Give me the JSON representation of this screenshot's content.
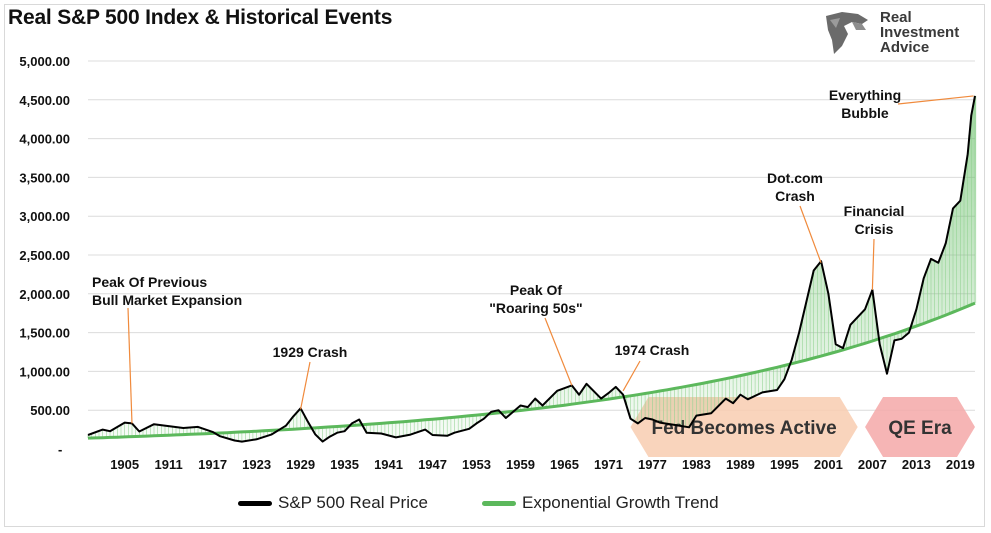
{
  "chart_data": {
    "type": "line",
    "title": "Real S&P 500 Index & Historical Events",
    "xlabel": "",
    "ylabel": "",
    "xlim": [
      1900,
      2021
    ],
    "ylim": [
      0,
      5000
    ],
    "y_ticks": [
      "-",
      "500.00",
      "1,000.00",
      "1,500.00",
      "2,000.00",
      "2,500.00",
      "3,000.00",
      "3,500.00",
      "4,000.00",
      "4,500.00",
      "5,000.00"
    ],
    "x_ticks": [
      "1905",
      "1911",
      "1917",
      "1923",
      "1929",
      "1935",
      "1941",
      "1947",
      "1953",
      "1959",
      "1965",
      "1971",
      "1977",
      "1983",
      "1989",
      "1995",
      "2001",
      "2007",
      "2013",
      "2019"
    ],
    "grid": true,
    "legend_position": "bottom",
    "series": [
      {
        "name": "S&P 500 Real Price",
        "color": "#000000",
        "points": [
          [
            1900,
            180
          ],
          [
            1902,
            250
          ],
          [
            1903,
            230
          ],
          [
            1905,
            340
          ],
          [
            1906,
            330
          ],
          [
            1907,
            225
          ],
          [
            1909,
            320
          ],
          [
            1911,
            295
          ],
          [
            1913,
            270
          ],
          [
            1915,
            285
          ],
          [
            1917,
            220
          ],
          [
            1918,
            165
          ],
          [
            1920,
            110
          ],
          [
            1921,
            95
          ],
          [
            1923,
            125
          ],
          [
            1925,
            185
          ],
          [
            1927,
            300
          ],
          [
            1928,
            420
          ],
          [
            1929,
            525
          ],
          [
            1930,
            350
          ],
          [
            1931,
            190
          ],
          [
            1932,
            95
          ],
          [
            1933,
            160
          ],
          [
            1934,
            210
          ],
          [
            1935,
            230
          ],
          [
            1936,
            330
          ],
          [
            1937,
            380
          ],
          [
            1938,
            210
          ],
          [
            1940,
            200
          ],
          [
            1942,
            150
          ],
          [
            1944,
            185
          ],
          [
            1946,
            250
          ],
          [
            1947,
            180
          ],
          [
            1949,
            170
          ],
          [
            1950,
            210
          ],
          [
            1952,
            260
          ],
          [
            1953,
            330
          ],
          [
            1954,
            390
          ],
          [
            1955,
            480
          ],
          [
            1956,
            500
          ],
          [
            1957,
            400
          ],
          [
            1959,
            560
          ],
          [
            1960,
            540
          ],
          [
            1961,
            650
          ],
          [
            1962,
            560
          ],
          [
            1964,
            750
          ],
          [
            1966,
            820
          ],
          [
            1967,
            700
          ],
          [
            1968,
            840
          ],
          [
            1970,
            650
          ],
          [
            1971,
            720
          ],
          [
            1972,
            800
          ],
          [
            1973,
            700
          ],
          [
            1974,
            390
          ],
          [
            1975,
            330
          ],
          [
            1976,
            400
          ],
          [
            1977,
            380
          ],
          [
            1978,
            340
          ],
          [
            1980,
            310
          ],
          [
            1982,
            280
          ],
          [
            1983,
            430
          ],
          [
            1985,
            460
          ],
          [
            1987,
            650
          ],
          [
            1988,
            590
          ],
          [
            1989,
            700
          ],
          [
            1990,
            640
          ],
          [
            1992,
            730
          ],
          [
            1994,
            760
          ],
          [
            1995,
            900
          ],
          [
            1996,
            1150
          ],
          [
            1997,
            1500
          ],
          [
            1998,
            1900
          ],
          [
            1999,
            2300
          ],
          [
            2000,
            2420
          ],
          [
            2001,
            2000
          ],
          [
            2002,
            1350
          ],
          [
            2003,
            1300
          ],
          [
            2004,
            1600
          ],
          [
            2006,
            1800
          ],
          [
            2007,
            2050
          ],
          [
            2008,
            1350
          ],
          [
            2009,
            970
          ],
          [
            2010,
            1400
          ],
          [
            2011,
            1420
          ],
          [
            2012,
            1500
          ],
          [
            2013,
            1800
          ],
          [
            2014,
            2200
          ],
          [
            2015,
            2450
          ],
          [
            2016,
            2400
          ],
          [
            2017,
            2650
          ],
          [
            2018,
            3100
          ],
          [
            2019,
            3200
          ],
          [
            2020,
            3800
          ],
          [
            2020.5,
            4300
          ],
          [
            2021,
            4550
          ]
        ]
      },
      {
        "name": "Exponential Growth Trend",
        "color": "#5cb85c",
        "start": [
          1900,
          140
        ],
        "end": [
          2021,
          1880
        ]
      }
    ],
    "annotations": [
      {
        "lines": [
          "Peak Of Previous",
          "Bull Market Expansion"
        ],
        "target": [
          1906,
          330
        ]
      },
      {
        "lines": [
          "1929 Crash"
        ],
        "target": [
          1929,
          510
        ]
      },
      {
        "lines": [
          "Peak Of",
          "\"Roaring 50s\""
        ],
        "target": [
          1966,
          820
        ]
      },
      {
        "lines": [
          "1974 Crash"
        ],
        "target": [
          1973,
          750
        ]
      },
      {
        "lines": [
          "Dot.com",
          "Crash"
        ],
        "target": [
          2000,
          2400
        ]
      },
      {
        "lines": [
          "Financial",
          "Crisis"
        ],
        "target": [
          2007,
          2050
        ]
      },
      {
        "lines": [
          "Everything",
          "Bubble"
        ],
        "target": [
          2020.8,
          4550
        ]
      }
    ],
    "eras": [
      {
        "label": "Fed Becomes Active",
        "x_start": 1974,
        "x_end": 2005,
        "color": "#f8cdb0"
      },
      {
        "label": "QE Era",
        "x_start": 2006,
        "x_end": 2021,
        "color": "#f4a8a8"
      }
    ]
  },
  "logo": {
    "name_lines": [
      "Real",
      "Investment",
      "Advice"
    ]
  }
}
